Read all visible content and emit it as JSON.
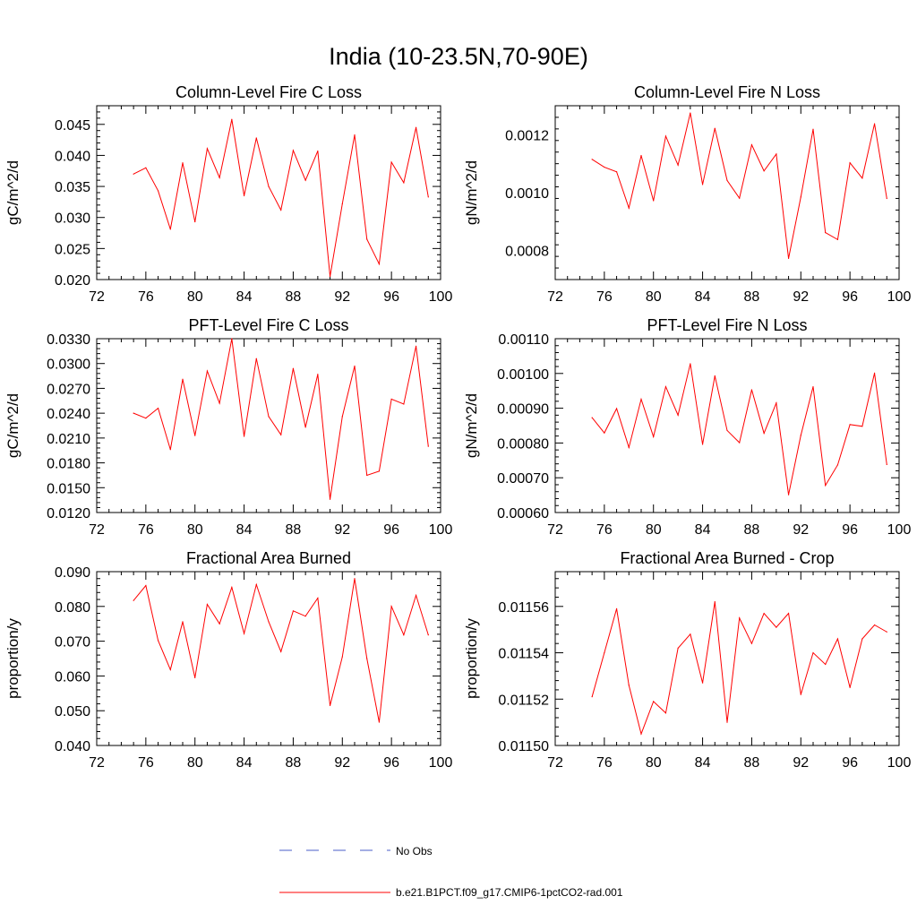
{
  "page": {
    "title": "India (10-23.5N,70-90E)"
  },
  "legend": {
    "obs_label": "No Obs",
    "model_label": "b.e21.B1PCT.f09_g17.CMIP6-1pctCO2-rad.001",
    "obs_color": "#4a5cc9",
    "model_color": "#ff0000"
  },
  "chart_data": [
    {
      "type": "line",
      "title": "Column-Level Fire C Loss",
      "ylabel": "gC/m^2/d",
      "xlabel": "",
      "xlim": [
        72,
        100
      ],
      "ylim": [
        0.02,
        0.048
      ],
      "xticks": [
        72,
        76,
        80,
        84,
        88,
        92,
        96,
        100
      ],
      "yticks": [
        0.02,
        0.025,
        0.03,
        0.035,
        0.04,
        0.045
      ],
      "ytick_labels": [
        "0.020",
        "0.025",
        "0.030",
        "0.035",
        "0.040",
        "0.045"
      ],
      "x": [
        75,
        76,
        77,
        78,
        79,
        80,
        81,
        82,
        83,
        84,
        85,
        86,
        87,
        88,
        89,
        90,
        91,
        92,
        93,
        94,
        95,
        96,
        97,
        98,
        99
      ],
      "series": [
        {
          "name": "b.e21.B1PCT.f09_g17.CMIP6-1pctCO2-rad.001",
          "values": [
            0.037,
            0.038,
            0.0343,
            0.0281,
            0.0388,
            0.0293,
            0.0411,
            0.0364,
            0.0458,
            0.0335,
            0.0428,
            0.035,
            0.0312,
            0.0408,
            0.036,
            0.0407,
            0.0205,
            0.0322,
            0.0433,
            0.0265,
            0.0225,
            0.0389,
            0.0356,
            0.0445,
            0.0333
          ]
        }
      ]
    },
    {
      "type": "line",
      "title": "Column-Level Fire N Loss",
      "ylabel": "gN/m^2/d",
      "xlabel": "",
      "xlim": [
        72,
        100
      ],
      "ylim": [
        0.0007,
        0.0013
      ],
      "xticks": [
        72,
        76,
        80,
        84,
        88,
        92,
        96,
        100
      ],
      "yticks": [
        0.0008,
        0.001,
        0.0012
      ],
      "ytick_labels": [
        "0.0008",
        "0.0010",
        "0.0012"
      ],
      "x": [
        75,
        76,
        77,
        78,
        79,
        80,
        81,
        82,
        83,
        84,
        85,
        86,
        87,
        88,
        89,
        90,
        91,
        92,
        93,
        94,
        95,
        96,
        97,
        98,
        99
      ],
      "series": [
        {
          "name": "b.e21.B1PCT.f09_g17.CMIP6-1pctCO2-rad.001",
          "values": [
            0.001115,
            0.001088,
            0.001072,
            0.000947,
            0.001128,
            0.000972,
            0.001195,
            0.001095,
            0.001275,
            0.001028,
            0.001222,
            0.001042,
            0.000981,
            0.001165,
            0.001075,
            0.001133,
            0.000773,
            0.000985,
            0.001219,
            0.000862,
            0.000838,
            0.001103,
            0.00105,
            0.001238,
            0.00098
          ]
        }
      ]
    },
    {
      "type": "line",
      "title": "PFT-Level Fire C Loss",
      "ylabel": "gC/m^2/d",
      "xlabel": "",
      "xlim": [
        72,
        100
      ],
      "ylim": [
        0.012,
        0.033
      ],
      "xticks": [
        72,
        76,
        80,
        84,
        88,
        92,
        96,
        100
      ],
      "yticks": [
        0.012,
        0.015,
        0.018,
        0.021,
        0.024,
        0.027,
        0.03,
        0.033
      ],
      "ytick_labels": [
        "0.0120",
        "0.0150",
        "0.0180",
        "0.0210",
        "0.0240",
        "0.0270",
        "0.0300",
        "0.0330"
      ],
      "x": [
        75,
        76,
        77,
        78,
        79,
        80,
        81,
        82,
        83,
        84,
        85,
        86,
        87,
        88,
        89,
        90,
        91,
        92,
        93,
        94,
        95,
        96,
        97,
        98,
        99
      ],
      "series": [
        {
          "name": "b.e21.B1PCT.f09_g17.CMIP6-1pctCO2-rad.001",
          "values": [
            0.024,
            0.0234,
            0.0246,
            0.0196,
            0.0281,
            0.0213,
            0.0291,
            0.0252,
            0.033,
            0.0212,
            0.0306,
            0.0236,
            0.0214,
            0.0294,
            0.0223,
            0.0287,
            0.0136,
            0.0236,
            0.0297,
            0.0165,
            0.017,
            0.0257,
            0.0251,
            0.0321,
            0.02
          ]
        }
      ]
    },
    {
      "type": "line",
      "title": "PFT-Level Fire N Loss",
      "ylabel": "gN/m^2/d",
      "xlabel": "",
      "xlim": [
        72,
        100
      ],
      "ylim": [
        0.0006,
        0.0011
      ],
      "xticks": [
        72,
        76,
        80,
        84,
        88,
        92,
        96,
        100
      ],
      "yticks": [
        0.0006,
        0.0007,
        0.0008,
        0.0009,
        0.001,
        0.0011
      ],
      "ytick_labels": [
        "0.00060",
        "0.00070",
        "0.00080",
        "0.00090",
        "0.00100",
        "0.00110"
      ],
      "x": [
        75,
        76,
        77,
        78,
        79,
        80,
        81,
        82,
        83,
        84,
        85,
        86,
        87,
        88,
        89,
        90,
        91,
        92,
        93,
        94,
        95,
        96,
        97,
        98,
        99
      ],
      "series": [
        {
          "name": "b.e21.B1PCT.f09_g17.CMIP6-1pctCO2-rad.001",
          "values": [
            0.000873,
            0.000829,
            0.000899,
            0.000787,
            0.000926,
            0.000818,
            0.000962,
            0.00088,
            0.001028,
            0.000796,
            0.000993,
            0.000836,
            0.000801,
            0.000953,
            0.000828,
            0.000915,
            0.000651,
            0.000822,
            0.000962,
            0.000678,
            0.000737,
            0.000853,
            0.000848,
            0.001001,
            0.000738
          ]
        }
      ]
    },
    {
      "type": "line",
      "title": "Fractional Area Burned",
      "ylabel": "proportion/y",
      "xlabel": "",
      "xlim": [
        72,
        100
      ],
      "ylim": [
        0.04,
        0.09
      ],
      "xticks": [
        72,
        76,
        80,
        84,
        88,
        92,
        96,
        100
      ],
      "yticks": [
        0.04,
        0.05,
        0.06,
        0.07,
        0.08,
        0.09
      ],
      "ytick_labels": [
        "0.040",
        "0.050",
        "0.060",
        "0.070",
        "0.080",
        "0.090"
      ],
      "x": [
        75,
        76,
        77,
        78,
        79,
        80,
        81,
        82,
        83,
        84,
        85,
        86,
        87,
        88,
        89,
        90,
        91,
        92,
        93,
        94,
        95,
        96,
        97,
        98,
        99
      ],
      "series": [
        {
          "name": "b.e21.B1PCT.f09_g17.CMIP6-1pctCO2-rad.001",
          "values": [
            0.0817,
            0.086,
            0.0702,
            0.0618,
            0.0756,
            0.0595,
            0.0806,
            0.075,
            0.0855,
            0.0722,
            0.0863,
            0.0756,
            0.067,
            0.0787,
            0.0772,
            0.0824,
            0.0515,
            0.0655,
            0.088,
            0.065,
            0.0467,
            0.08,
            0.0718,
            0.0832,
            0.0718
          ]
        }
      ]
    },
    {
      "type": "line",
      "title": "Fractional Area Burned - Crop",
      "ylabel": "proportion/y",
      "xlabel": "",
      "xlim": [
        72,
        100
      ],
      "ylim": [
        0.0115,
        0.011575
      ],
      "xticks": [
        72,
        76,
        80,
        84,
        88,
        92,
        96,
        100
      ],
      "yticks": [
        0.0115,
        0.01152,
        0.01154,
        0.01156
      ],
      "ytick_labels": [
        "0.01150",
        "0.01152",
        "0.01154",
        "0.01156"
      ],
      "x": [
        75,
        76,
        77,
        78,
        79,
        80,
        81,
        82,
        83,
        84,
        85,
        86,
        87,
        88,
        89,
        90,
        91,
        92,
        93,
        94,
        95,
        96,
        97,
        98,
        99
      ],
      "series": [
        {
          "name": "b.e21.B1PCT.f09_g17.CMIP6-1pctCO2-rad.001",
          "values": [
            0.011521,
            0.01154,
            0.011559,
            0.011526,
            0.011505,
            0.011519,
            0.011514,
            0.011542,
            0.011548,
            0.011527,
            0.011562,
            0.01151,
            0.011555,
            0.011544,
            0.011557,
            0.011551,
            0.011557,
            0.011522,
            0.01154,
            0.011535,
            0.011546,
            0.011525,
            0.011546,
            0.011552,
            0.011549
          ]
        }
      ]
    }
  ]
}
